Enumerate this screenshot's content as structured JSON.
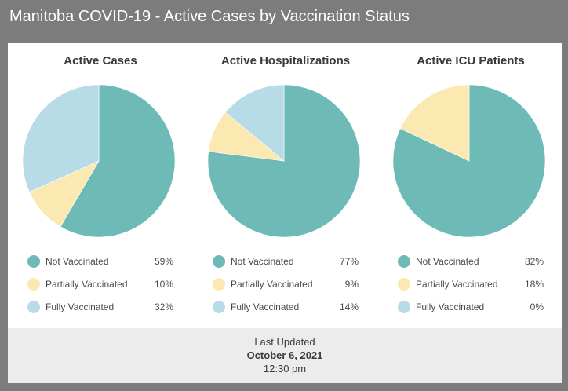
{
  "title": "Manitoba COVID-19 - Active Cases by Vaccination Status",
  "colors": {
    "not_vaccinated": "#6dbab6",
    "partially_vaccinated": "#fbe9b1",
    "fully_vaccinated": "#b8dbe8"
  },
  "chart_data": [
    {
      "type": "pie",
      "title": "Active Cases",
      "categories": [
        "Not Vaccinated",
        "Partially Vaccinated",
        "Fully Vaccinated"
      ],
      "values": [
        59,
        10,
        32
      ],
      "labels": [
        "59%",
        "10%",
        "32%"
      ]
    },
    {
      "type": "pie",
      "title": "Active Hospitalizations",
      "categories": [
        "Not Vaccinated",
        "Partially Vaccinated",
        "Fully Vaccinated"
      ],
      "values": [
        77,
        9,
        14
      ],
      "labels": [
        "77%",
        "9%",
        "14%"
      ]
    },
    {
      "type": "pie",
      "title": "Active ICU Patients",
      "categories": [
        "Not Vaccinated",
        "Partially Vaccinated",
        "Fully Vaccinated"
      ],
      "values": [
        82,
        18,
        0
      ],
      "labels": [
        "82%",
        "18%",
        "0%"
      ]
    }
  ],
  "footer": {
    "label": "Last Updated",
    "date": "October 6, 2021",
    "time": "12:30 pm"
  }
}
